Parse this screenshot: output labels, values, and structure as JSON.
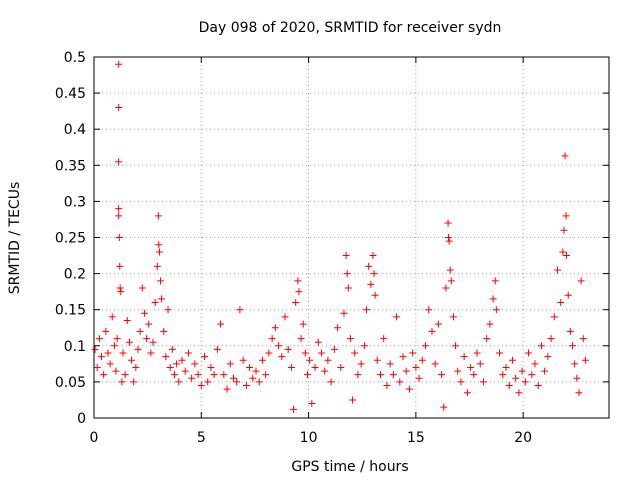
{
  "chart_data": {
    "type": "scatter",
    "title": "Day 098 of 2020, SRMTID for receiver sydn",
    "xlabel": "GPS time / hours",
    "ylabel": "SRMTID / TECUs",
    "xlim": [
      0,
      24
    ],
    "ylim": [
      0,
      0.5
    ],
    "x_ticks": [
      0,
      5,
      10,
      15,
      20
    ],
    "x_tick_labels": [
      "0",
      "5",
      "10",
      "15",
      "20"
    ],
    "y_ticks": [
      0,
      0.05,
      0.1,
      0.15,
      0.2,
      0.25,
      0.3,
      0.35,
      0.4,
      0.45,
      0.5
    ],
    "y_tick_labels": [
      "0",
      "0.05",
      "0.1",
      "0.15",
      "0.2",
      "0.25",
      "0.3",
      "0.35",
      "0.4",
      "0.45",
      "0.5"
    ],
    "grid": true,
    "marker": "+",
    "color": "#ff0000",
    "series": [
      {
        "name": "SRMTID",
        "points": [
          [
            0.05,
            0.095
          ],
          [
            0.15,
            0.07
          ],
          [
            0.25,
            0.11
          ],
          [
            0.35,
            0.085
          ],
          [
            0.45,
            0.06
          ],
          [
            0.55,
            0.12
          ],
          [
            0.65,
            0.09
          ],
          [
            0.75,
            0.075
          ],
          [
            0.85,
            0.14
          ],
          [
            0.95,
            0.1
          ],
          [
            1.02,
            0.065
          ],
          [
            1.08,
            0.11
          ],
          [
            1.15,
            0.49
          ],
          [
            1.15,
            0.43
          ],
          [
            1.15,
            0.355
          ],
          [
            1.15,
            0.29
          ],
          [
            1.15,
            0.28
          ],
          [
            1.18,
            0.25
          ],
          [
            1.2,
            0.21
          ],
          [
            1.22,
            0.18
          ],
          [
            1.25,
            0.175
          ],
          [
            1.3,
            0.05
          ],
          [
            1.35,
            0.09
          ],
          [
            1.45,
            0.06
          ],
          [
            1.55,
            0.135
          ],
          [
            1.65,
            0.105
          ],
          [
            1.75,
            0.08
          ],
          [
            1.85,
            0.05
          ],
          [
            1.95,
            0.07
          ],
          [
            2.05,
            0.095
          ],
          [
            2.15,
            0.12
          ],
          [
            2.25,
            0.18
          ],
          [
            2.35,
            0.145
          ],
          [
            2.45,
            0.11
          ],
          [
            2.55,
            0.13
          ],
          [
            2.65,
            0.09
          ],
          [
            2.75,
            0.105
          ],
          [
            2.85,
            0.16
          ],
          [
            2.95,
            0.21
          ],
          [
            3.0,
            0.28
          ],
          [
            3.02,
            0.24
          ],
          [
            3.05,
            0.23
          ],
          [
            3.1,
            0.19
          ],
          [
            3.15,
            0.165
          ],
          [
            3.25,
            0.12
          ],
          [
            3.35,
            0.085
          ],
          [
            3.45,
            0.15
          ],
          [
            3.55,
            0.07
          ],
          [
            3.65,
            0.095
          ],
          [
            3.75,
            0.06
          ],
          [
            3.85,
            0.075
          ],
          [
            3.95,
            0.05
          ],
          [
            4.1,
            0.08
          ],
          [
            4.25,
            0.065
          ],
          [
            4.4,
            0.09
          ],
          [
            4.55,
            0.055
          ],
          [
            4.7,
            0.075
          ],
          [
            4.85,
            0.06
          ],
          [
            5.0,
            0.045
          ],
          [
            5.15,
            0.085
          ],
          [
            5.3,
            0.05
          ],
          [
            5.45,
            0.07
          ],
          [
            5.6,
            0.06
          ],
          [
            5.75,
            0.095
          ],
          [
            5.9,
            0.13
          ],
          [
            6.05,
            0.06
          ],
          [
            6.2,
            0.04
          ],
          [
            6.35,
            0.075
          ],
          [
            6.5,
            0.055
          ],
          [
            6.65,
            0.05
          ],
          [
            6.8,
            0.15
          ],
          [
            6.95,
            0.08
          ],
          [
            7.1,
            0.045
          ],
          [
            7.25,
            0.07
          ],
          [
            7.4,
            0.055
          ],
          [
            7.55,
            0.065
          ],
          [
            7.7,
            0.05
          ],
          [
            7.85,
            0.08
          ],
          [
            8.0,
            0.06
          ],
          [
            8.15,
            0.09
          ],
          [
            8.3,
            0.11
          ],
          [
            8.45,
            0.125
          ],
          [
            8.6,
            0.1
          ],
          [
            8.75,
            0.085
          ],
          [
            8.9,
            0.14
          ],
          [
            9.05,
            0.095
          ],
          [
            9.2,
            0.07
          ],
          [
            9.3,
            0.012
          ],
          [
            9.4,
            0.16
          ],
          [
            9.5,
            0.19
          ],
          [
            9.55,
            0.175
          ],
          [
            9.65,
            0.11
          ],
          [
            9.75,
            0.13
          ],
          [
            9.85,
            0.09
          ],
          [
            9.95,
            0.06
          ],
          [
            10.05,
            0.08
          ],
          [
            10.15,
            0.02
          ],
          [
            10.3,
            0.07
          ],
          [
            10.45,
            0.105
          ],
          [
            10.6,
            0.09
          ],
          [
            10.75,
            0.065
          ],
          [
            10.9,
            0.08
          ],
          [
            11.05,
            0.05
          ],
          [
            11.2,
            0.095
          ],
          [
            11.35,
            0.125
          ],
          [
            11.5,
            0.07
          ],
          [
            11.65,
            0.145
          ],
          [
            11.75,
            0.225
          ],
          [
            11.8,
            0.2
          ],
          [
            11.85,
            0.18
          ],
          [
            11.95,
            0.11
          ],
          [
            12.05,
            0.025
          ],
          [
            12.15,
            0.09
          ],
          [
            12.3,
            0.06
          ],
          [
            12.45,
            0.075
          ],
          [
            12.6,
            0.1
          ],
          [
            12.7,
            0.15
          ],
          [
            12.8,
            0.21
          ],
          [
            12.9,
            0.185
          ],
          [
            13.0,
            0.225
          ],
          [
            13.05,
            0.2
          ],
          [
            13.1,
            0.17
          ],
          [
            13.2,
            0.08
          ],
          [
            13.35,
            0.06
          ],
          [
            13.5,
            0.11
          ],
          [
            13.65,
            0.045
          ],
          [
            13.8,
            0.075
          ],
          [
            13.95,
            0.06
          ],
          [
            14.1,
            0.14
          ],
          [
            14.25,
            0.05
          ],
          [
            14.4,
            0.085
          ],
          [
            14.55,
            0.065
          ],
          [
            14.7,
            0.04
          ],
          [
            14.85,
            0.09
          ],
          [
            15.0,
            0.07
          ],
          [
            15.15,
            0.055
          ],
          [
            15.3,
            0.08
          ],
          [
            15.45,
            0.1
          ],
          [
            15.6,
            0.15
          ],
          [
            15.75,
            0.12
          ],
          [
            15.9,
            0.075
          ],
          [
            16.05,
            0.13
          ],
          [
            16.2,
            0.06
          ],
          [
            16.3,
            0.015
          ],
          [
            16.4,
            0.18
          ],
          [
            16.5,
            0.27
          ],
          [
            16.52,
            0.25
          ],
          [
            16.55,
            0.245
          ],
          [
            16.6,
            0.205
          ],
          [
            16.65,
            0.19
          ],
          [
            16.75,
            0.14
          ],
          [
            16.85,
            0.1
          ],
          [
            16.95,
            0.065
          ],
          [
            17.1,
            0.05
          ],
          [
            17.25,
            0.085
          ],
          [
            17.4,
            0.035
          ],
          [
            17.55,
            0.07
          ],
          [
            17.7,
            0.06
          ],
          [
            17.85,
            0.09
          ],
          [
            18.0,
            0.075
          ],
          [
            18.15,
            0.05
          ],
          [
            18.3,
            0.11
          ],
          [
            18.45,
            0.13
          ],
          [
            18.6,
            0.165
          ],
          [
            18.7,
            0.19
          ],
          [
            18.75,
            0.15
          ],
          [
            18.9,
            0.09
          ],
          [
            19.05,
            0.06
          ],
          [
            19.2,
            0.07
          ],
          [
            19.35,
            0.045
          ],
          [
            19.5,
            0.08
          ],
          [
            19.65,
            0.055
          ],
          [
            19.8,
            0.035
          ],
          [
            19.95,
            0.065
          ],
          [
            20.1,
            0.05
          ],
          [
            20.25,
            0.09
          ],
          [
            20.4,
            0.06
          ],
          [
            20.55,
            0.075
          ],
          [
            20.7,
            0.045
          ],
          [
            20.85,
            0.1
          ],
          [
            21.0,
            0.065
          ],
          [
            21.15,
            0.085
          ],
          [
            21.3,
            0.11
          ],
          [
            21.45,
            0.14
          ],
          [
            21.6,
            0.205
          ],
          [
            21.75,
            0.16
          ],
          [
            21.85,
            0.23
          ],
          [
            21.9,
            0.26
          ],
          [
            21.95,
            0.363
          ],
          [
            22.0,
            0.28
          ],
          [
            22.02,
            0.225
          ],
          [
            22.1,
            0.17
          ],
          [
            22.2,
            0.12
          ],
          [
            22.3,
            0.1
          ],
          [
            22.4,
            0.075
          ],
          [
            22.5,
            0.055
          ],
          [
            22.6,
            0.035
          ],
          [
            22.7,
            0.19
          ],
          [
            22.8,
            0.11
          ],
          [
            22.9,
            0.08
          ]
        ]
      }
    ]
  }
}
